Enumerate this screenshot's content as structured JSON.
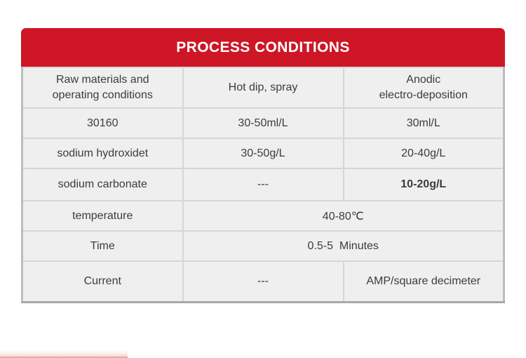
{
  "colors": {
    "accent_red": "#ce1626",
    "cell_background": "#efefef",
    "inner_border": "#d6d6d6",
    "outer_border": "#bdbdbd",
    "text": "#3c3c3c",
    "title_text": "#ffffff"
  },
  "table": {
    "title": "PROCESS CONDITIONS",
    "columns": [
      "Raw materials and\noperating conditions",
      "Hot dip, spray",
      "Anodic\nelectro-deposition"
    ],
    "rows": [
      {
        "cells": [
          {
            "text": "30160"
          },
          {
            "text": "30-50ml/L"
          },
          {
            "text": "30ml/L"
          }
        ]
      },
      {
        "cells": [
          {
            "text": "sodium hydroxidet"
          },
          {
            "text": "30-50g/L"
          },
          {
            "text": "20-40g/L"
          }
        ]
      },
      {
        "cells": [
          {
            "text": "sodium carbonate"
          },
          {
            "text": "---"
          },
          {
            "text": "10-20g/L",
            "bold": true
          }
        ]
      },
      {
        "cells": [
          {
            "text": "temperature"
          },
          {
            "text": "40-80℃",
            "span": 2
          }
        ]
      },
      {
        "cells": [
          {
            "text": "Time"
          },
          {
            "text": "0.5-5  Minutes",
            "span": 2
          }
        ]
      },
      {
        "cells": [
          {
            "text": "Current"
          },
          {
            "text": "---"
          },
          {
            "text": "AMP/square decimeter"
          }
        ]
      }
    ]
  }
}
